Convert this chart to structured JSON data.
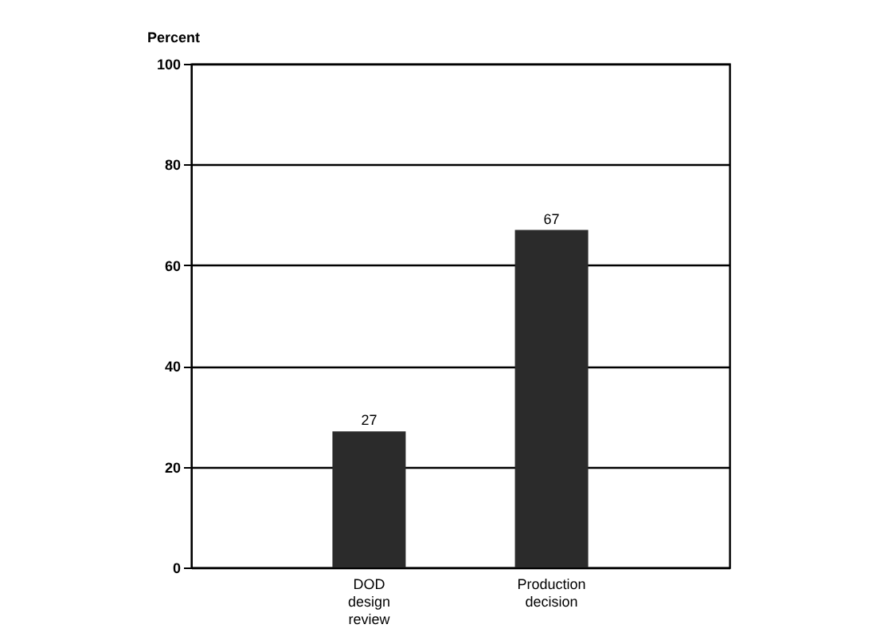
{
  "chart_data": {
    "type": "bar",
    "ylabel": "Percent",
    "categories": [
      "DOD design review",
      "Production decision"
    ],
    "values": [
      27,
      67
    ],
    "color": "#2b2b2b",
    "ylim": [
      0,
      100
    ],
    "yticks": [
      0,
      20,
      40,
      60,
      80,
      100
    ],
    "grid": "y",
    "data_labels": true
  }
}
